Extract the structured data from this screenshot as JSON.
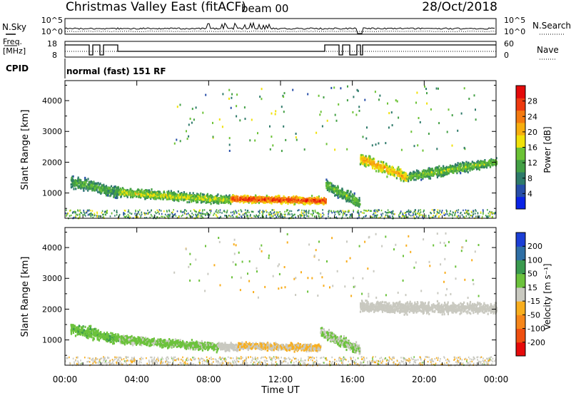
{
  "header": {
    "title": "Christmas Valley East (fitACF)",
    "beam": "beam 00",
    "date": "28/Oct/2018"
  },
  "nsky_panel": {
    "left_label": "N.Sky",
    "right_label": "N.Search",
    "y_ticks_left": [
      "10^5",
      "10^0"
    ],
    "y_ticks_right": [
      "10^5",
      "10^0"
    ]
  },
  "freq_panel": {
    "left_label_line1": "Freq.",
    "left_label_line2": "[MHz]",
    "right_label": "Nave",
    "y_ticks_left": [
      "18",
      "8"
    ],
    "y_ticks_right": [
      "60",
      "0"
    ],
    "freq_range": [
      8,
      18
    ],
    "nave_range": [
      0,
      60
    ]
  },
  "cpid": {
    "label": "CPID",
    "text": "normal (fast) 151 RF"
  },
  "chart_data": [
    {
      "type": "heatmap",
      "quantity": "Power",
      "ylabel": "Slant Range [km]",
      "ylim": [
        180,
        4650
      ],
      "y_ticks": [
        1000,
        2000,
        3000,
        4000
      ],
      "xlim": [
        0,
        24
      ],
      "colorbar": {
        "label": "Power [dB]",
        "range": [
          0,
          32
        ],
        "ticks": [
          4,
          8,
          12,
          16,
          20,
          24,
          28
        ],
        "colors": [
          "#0a23e6",
          "#274ea8",
          "#2e7a6a",
          "#43a045",
          "#6bc235",
          "#f0e10a",
          "#f7ae0f",
          "#f47a10",
          "#ee3a10",
          "#e40a0a"
        ]
      },
      "features": [
        {
          "from": 0.3,
          "to": 3.0,
          "range_start": 1400,
          "range_end": 1050,
          "thickness": 520,
          "power": 13
        },
        {
          "from": 3.0,
          "to": 9.2,
          "range_start": 1050,
          "range_end": 800,
          "thickness": 380,
          "power": 17
        },
        {
          "from": 9.2,
          "to": 14.5,
          "range_start": 850,
          "range_end": 780,
          "thickness": 320,
          "power": 29
        },
        {
          "from": 14.5,
          "to": 16.4,
          "range_start": 1300,
          "range_end": 700,
          "thickness": 500,
          "power": 14
        },
        {
          "from": 16.4,
          "to": 19.0,
          "range_start": 2150,
          "range_end": 1550,
          "thickness": 520,
          "power": 22
        },
        {
          "from": 19.0,
          "to": 24.0,
          "range_start": 1550,
          "range_end": 2050,
          "thickness": 420,
          "power": 15
        }
      ]
    },
    {
      "type": "heatmap",
      "quantity": "Velocity",
      "ylabel": "Slant Range [km]",
      "ylim": [
        180,
        4650
      ],
      "y_ticks": [
        1000,
        2000,
        3000,
        4000
      ],
      "xlim": [
        0,
        24
      ],
      "colorbar": {
        "label": "Velocity [m s⁻¹]",
        "range": [
          -250,
          250
        ],
        "ticks": [
          "200",
          "100",
          "50",
          "15",
          "-15",
          "-50",
          "-100",
          "-200"
        ],
        "colors": [
          "#e60a0a",
          "#ef4f10",
          "#f6861a",
          "#f8ae1e",
          "#c9c9c0",
          "#6cc23c",
          "#3a9a4f",
          "#2f6fa5",
          "#1c3fd6"
        ]
      },
      "features": [
        {
          "from": 0.3,
          "to": 3.0,
          "range_start": 1400,
          "range_end": 1050,
          "thickness": 520,
          "velocity": 70
        },
        {
          "from": 3.0,
          "to": 8.5,
          "range_start": 1050,
          "range_end": 800,
          "thickness": 380,
          "velocity": 40
        },
        {
          "from": 8.5,
          "to": 9.6,
          "range_start": 820,
          "range_end": 800,
          "thickness": 340,
          "velocity": 0
        },
        {
          "from": 9.6,
          "to": 14.2,
          "range_start": 850,
          "range_end": 780,
          "thickness": 320,
          "velocity": -30
        },
        {
          "from": 14.2,
          "to": 16.4,
          "range_start": 1300,
          "range_end": 700,
          "thickness": 500,
          "velocity": 30
        },
        {
          "from": 16.4,
          "to": 24.0,
          "range_start": 2100,
          "range_end": 2050,
          "thickness": 480,
          "velocity": 0
        }
      ]
    }
  ],
  "x_axis": {
    "ticks": [
      "00:00",
      "04:00",
      "08:00",
      "12:00",
      "16:00",
      "20:00",
      "00:00"
    ],
    "label": "Time UT"
  }
}
